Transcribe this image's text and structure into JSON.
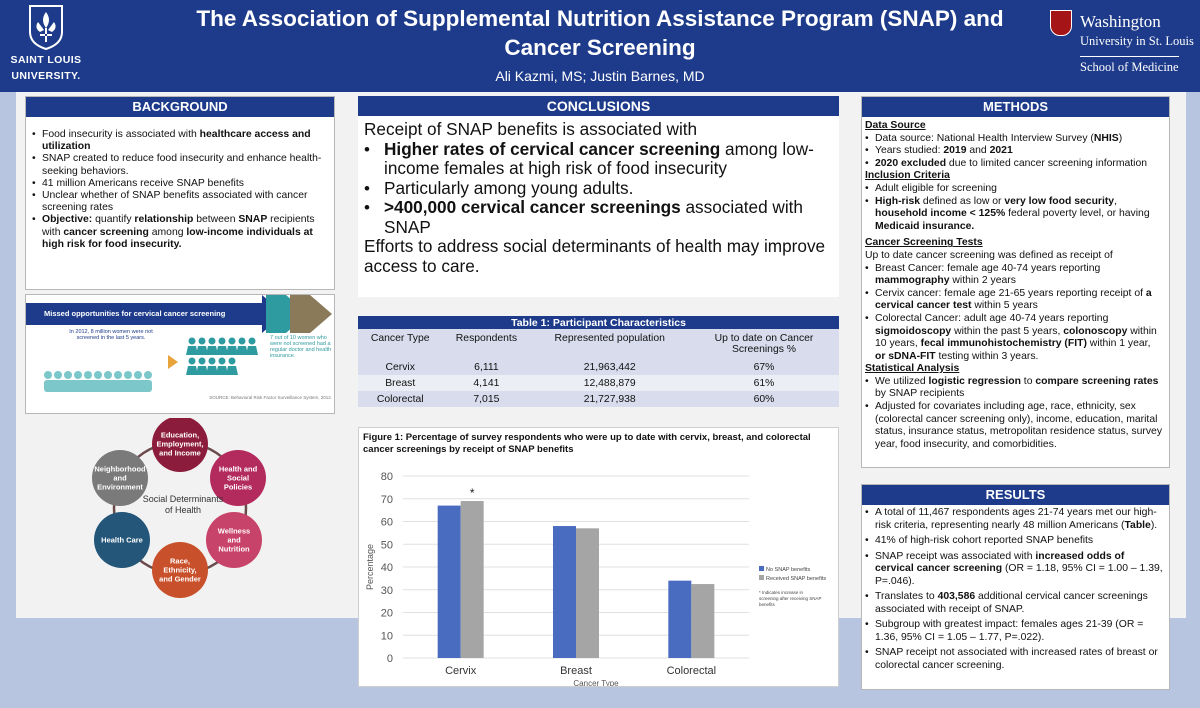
{
  "header": {
    "title_line1": "The Association of Supplemental Nutrition Assistance Program (SNAP) and",
    "title_line2": "Cancer Screening",
    "authors": "Ali Kazmi, MS; Justin Barnes, MD",
    "logo_left_l1": "SAINT LOUIS",
    "logo_left_l2": "UNIVERSITY.",
    "logo_right_l1": "Washington",
    "logo_right_l2": "University in St. Louis",
    "logo_right_l3": "School of Medicine"
  },
  "background": {
    "heading": "BACKGROUND",
    "items": [
      {
        "pre": "Food insecurity is associated with ",
        "bold": "healthcare access and utilization",
        "post": ""
      },
      {
        "pre": "SNAP created to reduce food insecurity and enhance health-seeking behaviors.",
        "bold": "",
        "post": ""
      },
      {
        "pre": "41 million Americans receive SNAP benefits",
        "bold": "",
        "post": ""
      },
      {
        "pre": "Unclear whether of SNAP benefits associated with cancer screening rates",
        "bold": "",
        "post": ""
      }
    ],
    "objective": {
      "label": "Objective:",
      "t1": " quantify ",
      "b1": "relationship",
      "t2": " between ",
      "b2": "SNAP",
      "t3": " recipients with ",
      "b3": "cancer screening",
      "t4": " among ",
      "b4": "low-income individuals at high risk for food insecurity."
    }
  },
  "infographic": {
    "banner": "Missed opportunities for cervical cancer screening",
    "stat_left": "In 2012, 8 million women were not screened in the last 5 years.",
    "stat_right": "7 out of 10 women who were not screened had a regular doctor and health insurance.",
    "source": "SOURCE: Behavioral Risk Factor Surveillance System, 2012."
  },
  "sdoh": {
    "center": "Social Determinants of Health",
    "nodes": [
      {
        "label": "Education, Employment, and Income",
        "color": "#8c1c3b"
      },
      {
        "label": "Health and Social Policies",
        "color": "#b32a5c"
      },
      {
        "label": "Wellness and Nutrition",
        "color": "#c8436a"
      },
      {
        "label": "Race, Ethnicity, and Gender",
        "color": "#c8502a"
      },
      {
        "label": "Health Care",
        "color": "#24567a"
      },
      {
        "label": "Neighborhood and Environment",
        "color": "#7a7a7a"
      }
    ]
  },
  "conclusions": {
    "heading": "CONCLUSIONS",
    "intro": "Receipt of SNAP benefits is associated with",
    "b1_bold": "Higher rates of cervical cancer screening",
    "b1_rest": " among low-income females at high risk of food insecurity",
    "b2": "Particularly among young adults.",
    "b3_bold": ">400,000 cervical cancer screenings",
    "b3_rest": " associated with SNAP",
    "outro": "Efforts to address social determinants of health may improve access to care."
  },
  "table": {
    "caption": "Table 1: Participant Characteristics",
    "columns": [
      "Cancer Type",
      "Respondents",
      "Represented population",
      "Up to date on Cancer Screenings %"
    ],
    "rows": [
      [
        "Cervix",
        "6,111",
        "21,963,442",
        "67%"
      ],
      [
        "Breast",
        "4,141",
        "12,488,879",
        "61%"
      ],
      [
        "Colorectal",
        "7,015",
        "21,727,938",
        "60%"
      ]
    ]
  },
  "chart_data": {
    "type": "bar",
    "title": "Figure 1: Percentage of survey respondents who were up to date with cervix, breast, and colorectal cancer screenings by receipt of SNAP benefits",
    "xlabel": "Cancer Type",
    "ylabel": "Percentage",
    "ylim": [
      0,
      80
    ],
    "yticks": [
      0,
      10,
      20,
      30,
      40,
      50,
      60,
      70,
      80
    ],
    "categories": [
      "Cervix",
      "Breast",
      "Colorectal"
    ],
    "series": [
      {
        "name": "No SNAP benefits",
        "values": [
          67,
          58,
          34
        ],
        "color": "#4a6cc0"
      },
      {
        "name": "Received SNAP benefits",
        "values": [
          69,
          57,
          32.5
        ],
        "color": "#a5a5a5"
      }
    ],
    "annotation": "*",
    "footnote": "* Indicates increase in screening after receiving SNAP benefits",
    "legend": "right",
    "grid": true
  },
  "methods": {
    "heading": "METHODS",
    "data_source_h": "Data Source",
    "inclusion_h": "Inclusion Criteria",
    "tests_h": "Cancer Screening Tests",
    "tests_intro": "Up to date cancer screening was defined as receipt of",
    "stats_h": "Statistical Analysis"
  },
  "results": {
    "heading": "RESULTS"
  }
}
